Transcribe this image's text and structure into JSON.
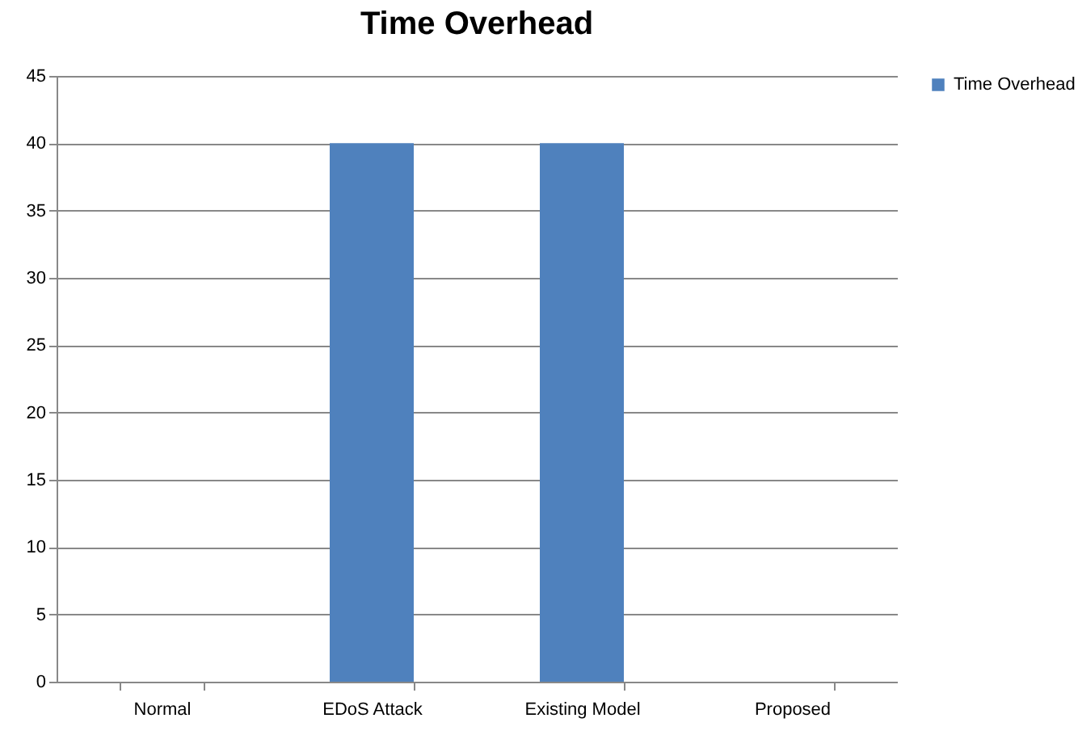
{
  "chart_data": {
    "type": "bar",
    "title": "Time Overhead",
    "categories": [
      "Normal",
      "EDoS Attack",
      "Existing Model",
      "Proposed"
    ],
    "series": [
      {
        "name": "Time Overhead",
        "color": "#4f81bd",
        "values": [
          0,
          40,
          40,
          0
        ]
      }
    ],
    "ylim": [
      0,
      45
    ],
    "yticks": [
      0,
      5,
      10,
      15,
      20,
      25,
      30,
      35,
      40,
      45
    ],
    "grid": "y",
    "legend": "right"
  }
}
